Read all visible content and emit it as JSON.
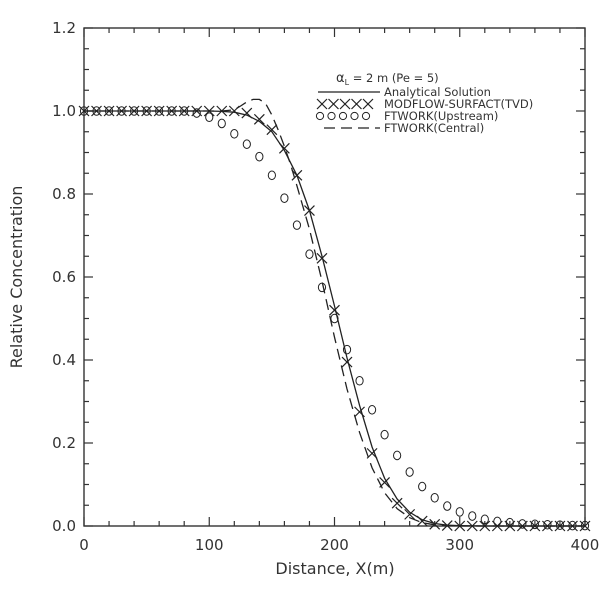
{
  "chart_data": {
    "type": "line",
    "title": "",
    "xlabel": "Distance, X(m)",
    "ylabel": "Relative Concentration",
    "xlim": [
      0,
      400
    ],
    "ylim": [
      0,
      1.2
    ],
    "x_ticks": [
      "0",
      "100",
      "200",
      "300",
      "400"
    ],
    "y_ticks": [
      "0.0",
      "0.2",
      "0.4",
      "0.6",
      "0.8",
      "1.0",
      "1.2"
    ],
    "grid": false,
    "legend_position": "top-right",
    "legend_header": {
      "symbol": "α",
      "subscript": "L",
      "text": " = 2 m (Pe = 5)"
    },
    "series": [
      {
        "name": "Analytical Solution",
        "style": "solid",
        "x": [
          0,
          100,
          110,
          120,
          130,
          140,
          150,
          160,
          170,
          180,
          190,
          200,
          210,
          220,
          230,
          240,
          250,
          260,
          270,
          280,
          290,
          300,
          320,
          340,
          360,
          380,
          400
        ],
        "values": [
          1.0,
          1.0,
          0.999,
          0.997,
          0.99,
          0.975,
          0.95,
          0.905,
          0.845,
          0.76,
          0.65,
          0.53,
          0.405,
          0.29,
          0.19,
          0.115,
          0.065,
          0.033,
          0.015,
          0.006,
          0.002,
          0.001,
          0,
          0,
          0,
          0,
          0
        ]
      },
      {
        "name": "MODFLOW-SURFACT(TVD)",
        "style": "x-marker",
        "x": [
          0,
          10,
          20,
          30,
          40,
          50,
          60,
          70,
          80,
          90,
          100,
          110,
          120,
          130,
          140,
          150,
          160,
          170,
          180,
          190,
          200,
          210,
          220,
          230,
          240,
          250,
          260,
          270,
          280,
          290,
          300,
          310,
          320,
          330,
          340,
          350,
          360,
          370,
          380,
          390,
          400
        ],
        "values": [
          1.0,
          1.0,
          1.0,
          1.0,
          1.0,
          1.0,
          1.0,
          1.0,
          1.0,
          1.0,
          1.0,
          1.0,
          1.0,
          0.995,
          0.98,
          0.955,
          0.91,
          0.845,
          0.76,
          0.645,
          0.52,
          0.395,
          0.275,
          0.175,
          0.105,
          0.055,
          0.028,
          0.012,
          0.004,
          0.001,
          0,
          0,
          0,
          0,
          0,
          0,
          0,
          0,
          0,
          0,
          0
        ]
      },
      {
        "name": "FTWORK(Upstream)",
        "style": "circle-marker",
        "x": [
          0,
          10,
          20,
          30,
          40,
          50,
          60,
          70,
          80,
          90,
          100,
          110,
          120,
          130,
          140,
          150,
          160,
          170,
          180,
          190,
          200,
          210,
          220,
          230,
          240,
          250,
          260,
          270,
          280,
          290,
          300,
          310,
          320,
          330,
          340,
          350,
          360,
          370,
          380,
          390,
          400
        ],
        "values": [
          1.0,
          1.0,
          1.0,
          1.0,
          1.0,
          1.0,
          1.0,
          1.0,
          1.0,
          0.995,
          0.985,
          0.97,
          0.945,
          0.92,
          0.89,
          0.845,
          0.79,
          0.725,
          0.655,
          0.575,
          0.5,
          0.425,
          0.35,
          0.28,
          0.22,
          0.17,
          0.13,
          0.095,
          0.068,
          0.048,
          0.034,
          0.024,
          0.016,
          0.011,
          0.008,
          0.005,
          0.004,
          0.003,
          0.002,
          0.001,
          0.001
        ]
      },
      {
        "name": "FTWORK(Central)",
        "style": "dashed",
        "x": [
          0,
          100,
          110,
          120,
          125,
          130,
          135,
          140,
          145,
          150,
          155,
          160,
          165,
          170,
          180,
          190,
          200,
          210,
          220,
          230,
          240,
          250,
          260,
          270,
          280,
          290,
          300,
          320,
          340,
          360,
          380,
          400
        ],
        "values": [
          1.0,
          1.0,
          1.0,
          1.003,
          1.012,
          1.022,
          1.028,
          1.028,
          1.018,
          0.99,
          0.955,
          0.915,
          0.87,
          0.82,
          0.715,
          0.59,
          0.455,
          0.33,
          0.225,
          0.14,
          0.08,
          0.042,
          0.02,
          0.008,
          0.003,
          0.001,
          0,
          0,
          0,
          0,
          0,
          0
        ]
      }
    ]
  }
}
